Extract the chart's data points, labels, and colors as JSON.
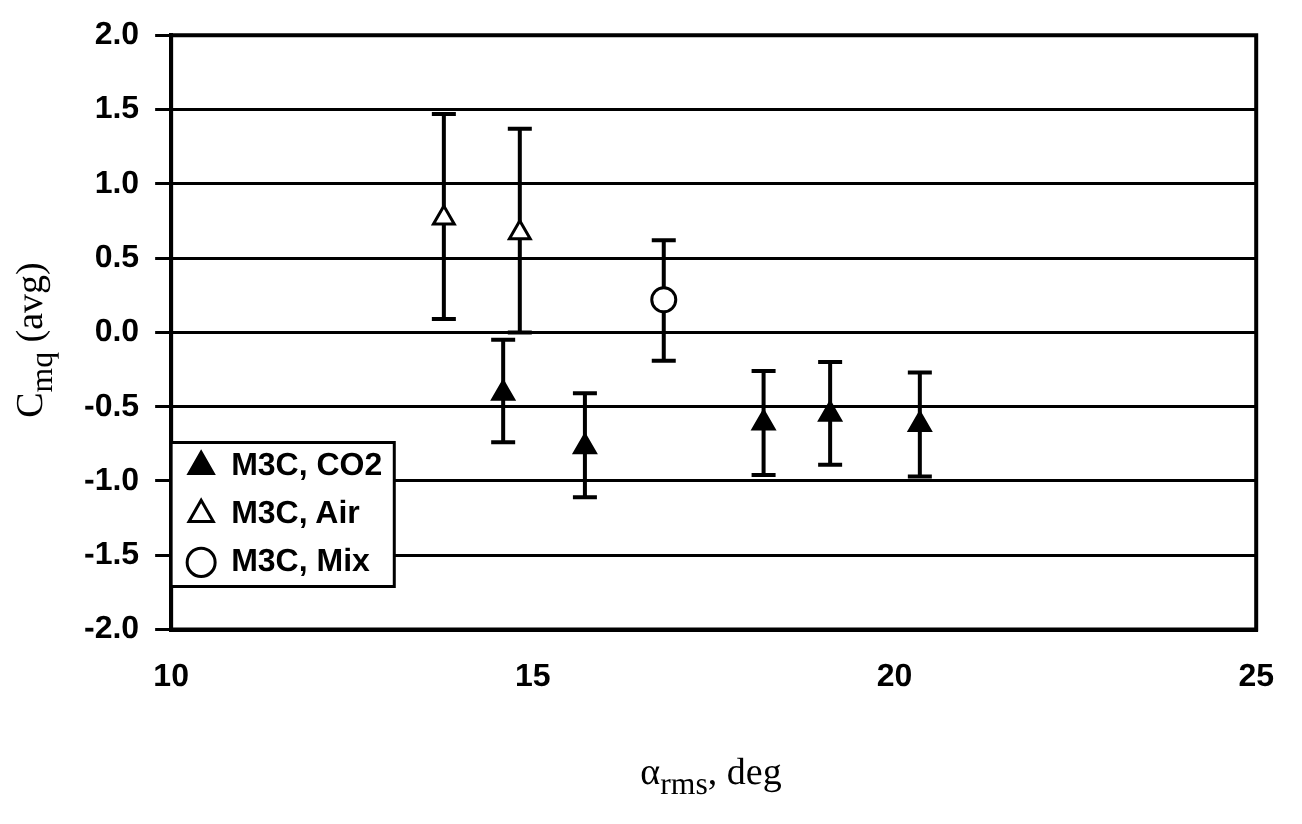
{
  "chart_data": {
    "type": "scatter",
    "xlabel": "α$_{rms}$, deg",
    "ylabel": "C$_{mq}$ (avg)",
    "xlim": [
      10,
      25
    ],
    "xticks": [
      10,
      15,
      20,
      25
    ],
    "ylim": [
      -2,
      2
    ],
    "yticks": [
      {
        "value": -2,
        "label": "-2.0"
      },
      {
        "value": -1.5,
        "label": "-1.5"
      },
      {
        "value": -1,
        "label": "-1.0"
      },
      {
        "value": -0.5,
        "label": "-0.5"
      },
      {
        "value": 0,
        "label": "0.0"
      },
      {
        "value": 0.5,
        "label": "0.5"
      },
      {
        "value": 1,
        "label": "1.0"
      },
      {
        "value": 1.5,
        "label": "1.5"
      },
      {
        "value": 2,
        "label": "2.0"
      }
    ],
    "grid": "y",
    "legend": "bottom left",
    "series": [
      {
        "name": "M3C, CO2",
        "color": "#000000",
        "marker": "triangle",
        "x": [
          14.59,
          15.72,
          18.19,
          19.11,
          20.35
        ],
        "values": [
          -0.41,
          -0.77,
          -0.61,
          -0.55,
          -0.62
        ],
        "errors": [
          [
            -0.74,
            -0.05
          ],
          [
            -1.11,
            -0.41
          ],
          [
            -0.96,
            -0.26
          ],
          [
            -0.89,
            -0.2
          ],
          [
            -0.97,
            -0.27
          ]
        ]
      },
      {
        "name": "M3C, Air",
        "color": "#ffffff",
        "marker": "triangle",
        "x": [
          13.77,
          14.82
        ],
        "values": [
          0.77,
          0.67
        ],
        "errors": [
          [
            0.09,
            1.47
          ],
          [
            0.0,
            1.37
          ]
        ]
      },
      {
        "name": "M3C, Mix",
        "color": "#ffffff",
        "marker": "circle",
        "x": [
          16.81
        ],
        "values": [
          0.22
        ],
        "errors": [
          [
            -0.19,
            0.62
          ]
        ]
      }
    ]
  }
}
